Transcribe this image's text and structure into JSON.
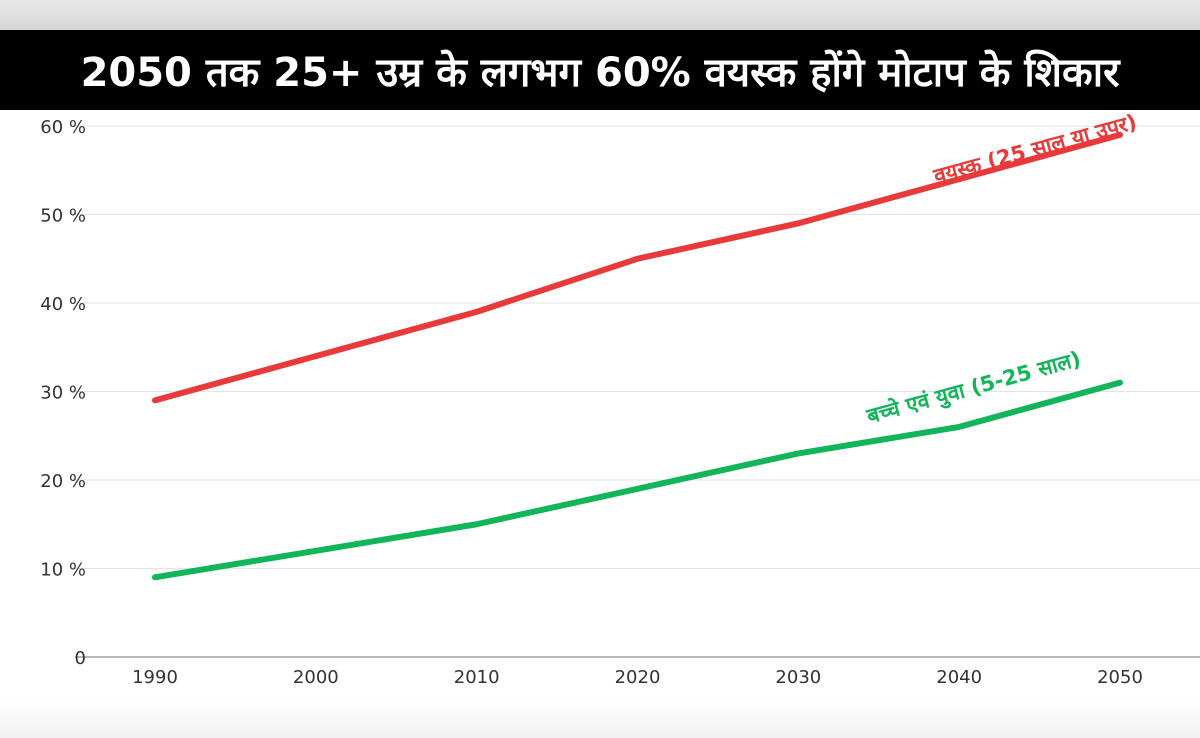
{
  "chart_data": {
    "type": "line",
    "title": "2050 तक 25+ उम्र के लगभग 60% वयस्क होंगे मोटाप के शिकार",
    "xlabel": "",
    "ylabel": "",
    "x": [
      1990,
      2000,
      2010,
      2020,
      2030,
      2040,
      2050
    ],
    "ylim": [
      0,
      60
    ],
    "y_ticks": [
      0,
      10,
      20,
      30,
      40,
      50,
      60
    ],
    "y_tick_labels": [
      "0",
      "10 %",
      "20 %",
      "30 %",
      "40 %",
      "50 %",
      "60 %"
    ],
    "x_tick_labels": [
      "1990",
      "2000",
      "2010",
      "2020",
      "2030",
      "2040",
      "2050"
    ],
    "grid": true,
    "series": [
      {
        "name": "वयस्क (25 साल या उपर)",
        "color": "#e8393b",
        "values": [
          29,
          34,
          39,
          45,
          49,
          54,
          59
        ]
      },
      {
        "name": "बच्चे एवं युवा (5-25 साल)",
        "color": "#13b55a",
        "values": [
          9,
          12,
          15,
          19,
          23,
          26,
          31
        ]
      }
    ]
  }
}
